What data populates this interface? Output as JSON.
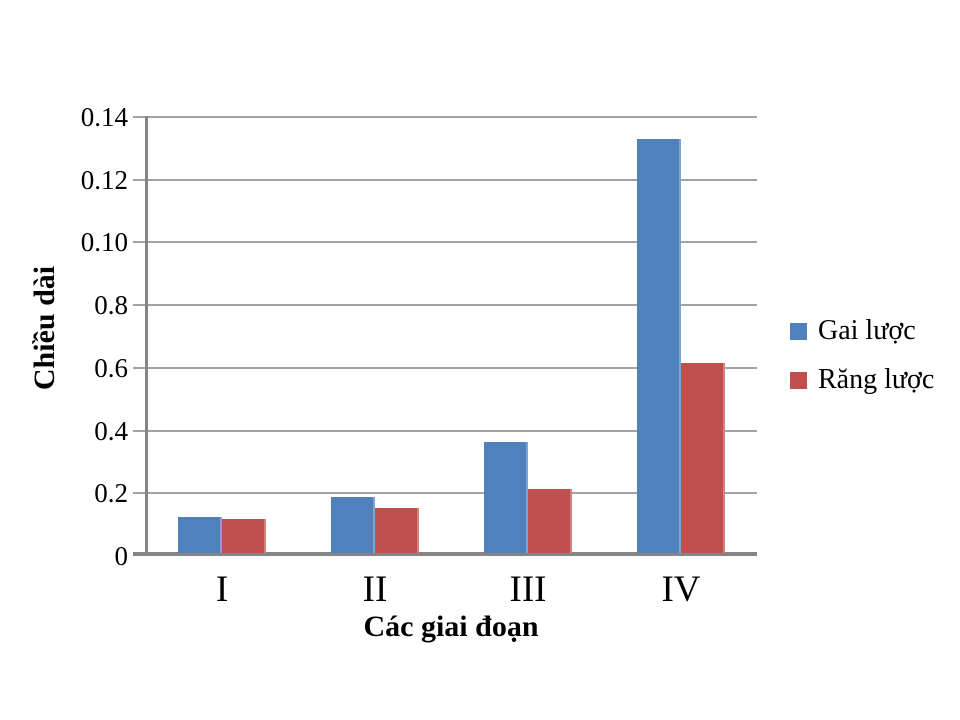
{
  "chart_data": {
    "type": "bar",
    "title": "",
    "xlabel": "Các giai đoạn",
    "ylabel": "Chiều dài",
    "categories": [
      "I",
      "II",
      "III",
      "IV"
    ],
    "series": [
      {
        "name": "Gai lược",
        "color": "#4F81BD",
        "edge_color": "#7FA3D4",
        "values": [
          0.0115,
          0.018,
          0.0355,
          0.132
        ]
      },
      {
        "name": "Răng lược",
        "color": "#C0504D",
        "edge_color": "#D4817F",
        "values": [
          0.011,
          0.0145,
          0.0205,
          0.0605
        ]
      }
    ],
    "ylim": [
      0,
      0.14
    ],
    "ytick_labels_as_displayed": [
      "0",
      "0.2",
      "0.4",
      "0.6",
      "0.8",
      "0.10",
      "0.12",
      "0.14"
    ],
    "grid": true,
    "legend_position": "right",
    "colors": {
      "gridline": "#A3A3A3",
      "axis_line": "#858585",
      "text": "#000000"
    }
  }
}
